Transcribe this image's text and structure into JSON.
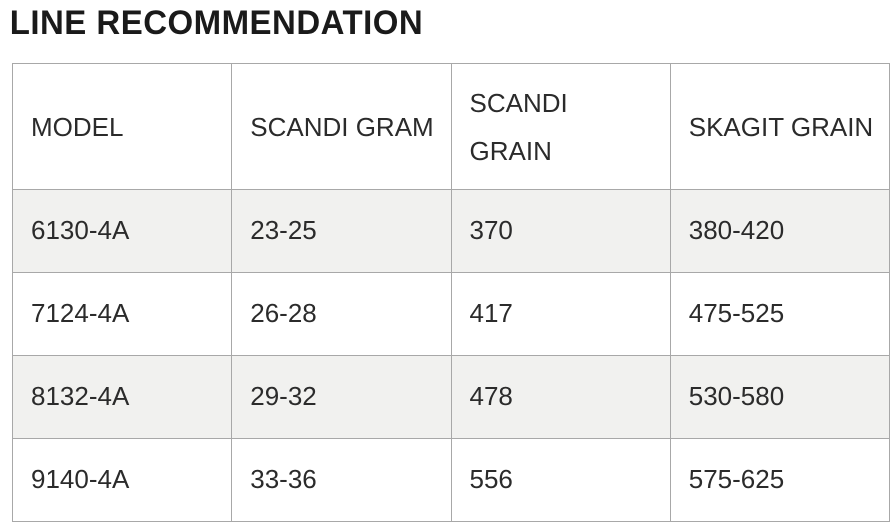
{
  "page": {
    "title": "LINE RECOMMENDATION"
  },
  "colors": {
    "title_text": "#1a1a1a",
    "cell_text": "#2b2b2b",
    "border": "#a8a8a8",
    "alt_row_background": "#f1f1ef",
    "row_background": "#ffffff"
  },
  "chart_data": {
    "type": "table",
    "title": "LINE RECOMMENDATION",
    "columns": [
      "MODEL",
      "SCANDI GRAM",
      "SCANDI GRAIN",
      "SKAGIT GRAIN"
    ],
    "rows": [
      [
        "6130-4A",
        "23-25",
        "370",
        "380-420"
      ],
      [
        "7124-4A",
        "26-28",
        "417",
        "475-525"
      ],
      [
        "8132-4A",
        "29-32",
        "478",
        "530-580"
      ],
      [
        "9140-4A",
        "33-36",
        "556",
        "575-625"
      ]
    ],
    "layout_hints": {
      "striped_rows": [
        0,
        2
      ],
      "header_wraps": "SCANDI GRAIN wraps to two lines",
      "grid": true
    }
  }
}
